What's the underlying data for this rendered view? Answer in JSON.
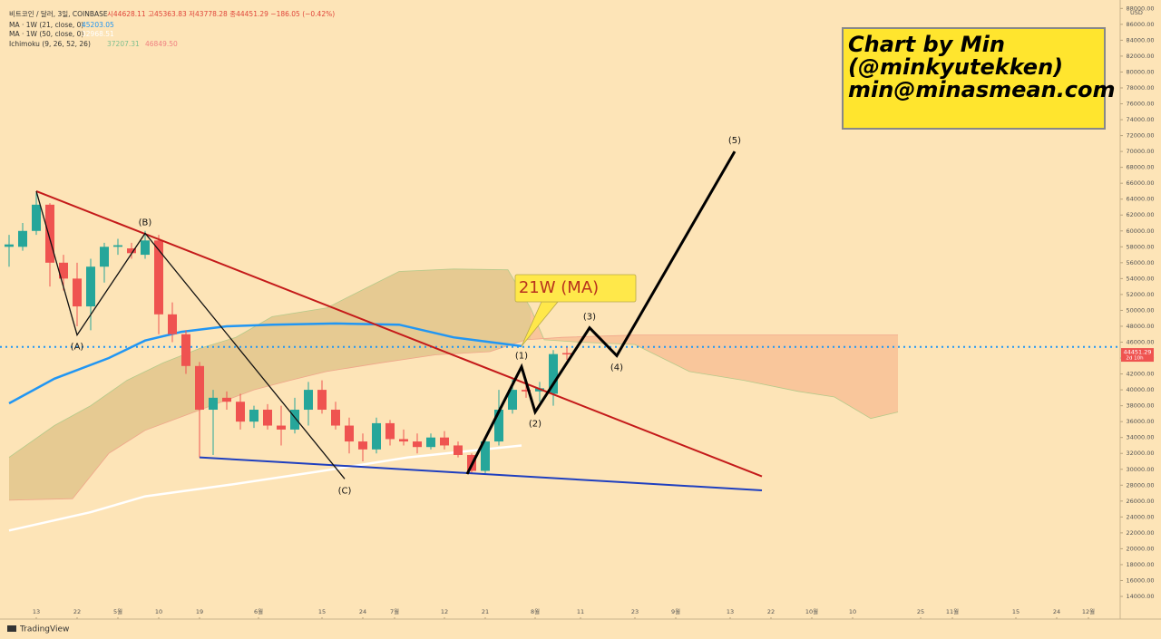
{
  "chart_data": {
    "type": "candlestick",
    "header": [
      "비트코인 / 달러, 3일, COINBASE",
      "시44628.11 고45363.83 저43778.28 종44451.29 −186.05 (−0.42%)"
    ],
    "indicators": [
      {
        "name": "MA · 1W (21, close, 0)",
        "value": "45203.05",
        "color": "#2196f3"
      },
      {
        "name": "MA · 1W (50, close, 0)",
        "value": "32968.51",
        "color": "#ffffff"
      },
      {
        "name": "Ichimoku (9, 26, 52, 26)",
        "value": "37207.31",
        "value2": "46849.50",
        "color": "#7fbf8f",
        "color2": "#f08080"
      }
    ],
    "author_note": [
      "Chart by Min",
      "(@minkyutekken)",
      "min@minasmean.com"
    ],
    "callout": "21W (MA)",
    "y_unit": "USD",
    "last_price_label": "44451.29",
    "countdown": "2d 10h",
    "brand": "TradingView",
    "up_color": "#26a69a",
    "down_color": "#ef5350",
    "candles": {
      "x": [
        97,
        100,
        103,
        106,
        109,
        112,
        115,
        118,
        121,
        124,
        127,
        130,
        133,
        136,
        139,
        142,
        145,
        148,
        151,
        154,
        157,
        160,
        163,
        166,
        169,
        172,
        175,
        178,
        181,
        184,
        187,
        190,
        193,
        196,
        199,
        202,
        205,
        208,
        211,
        214,
        217,
        220
      ],
      "open": [
        58000,
        58000,
        60000,
        63300,
        56000,
        54000,
        50500,
        55500,
        58000,
        57800,
        57000,
        58800,
        49500,
        47000,
        43000,
        37500,
        39000,
        38500,
        36000,
        37500,
        35500,
        35000,
        37500,
        40000,
        37500,
        35500,
        33500,
        32500,
        35800,
        33800,
        33500,
        32800,
        34000,
        33000,
        31800,
        29800,
        33500,
        37500,
        40000,
        39800,
        39500,
        44628.11
      ],
      "high": [
        59500,
        61000,
        64800,
        63500,
        57000,
        56000,
        56500,
        58500,
        59000,
        58500,
        60000,
        59500,
        51000,
        47500,
        43500,
        40000,
        39800,
        39500,
        38000,
        38200,
        38000,
        39000,
        41000,
        41200,
        38500,
        36500,
        34500,
        36500,
        36200,
        35000,
        34500,
        34500,
        34800,
        33500,
        32000,
        34000,
        40000,
        41500,
        41000,
        41000,
        45000,
        45363.83
      ],
      "low": [
        55500,
        57500,
        59500,
        53000,
        52500,
        48000,
        47500,
        53500,
        57000,
        56500,
        56500,
        47000,
        46000,
        42000,
        31500,
        31800,
        37500,
        35000,
        35200,
        35000,
        33000,
        34500,
        35500,
        37000,
        35000,
        32000,
        31000,
        32000,
        33000,
        33000,
        32000,
        32500,
        32500,
        31500,
        29500,
        29500,
        33000,
        37000,
        39000,
        38500,
        38000,
        43778.28
      ],
      "close": [
        58300,
        60000,
        63300,
        56000,
        54000,
        50500,
        55500,
        58000,
        58200,
        57200,
        58800,
        49500,
        47000,
        43000,
        37500,
        39000,
        38500,
        36000,
        37500,
        35500,
        35000,
        37500,
        40000,
        37500,
        35500,
        33500,
        32500,
        35800,
        33800,
        33500,
        32800,
        34000,
        33000,
        31800,
        29800,
        33500,
        37500,
        40000,
        39800,
        40200,
        44500,
        44451.29
      ]
    },
    "lines": [
      {
        "name": "MA 21",
        "color": "#2196f3",
        "width": 2.5,
        "x": [
          97,
          107,
          119,
          127,
          135,
          145,
          155,
          169,
          183,
          195,
          210
        ],
        "values": [
          38300,
          41400,
          44000,
          46200,
          47300,
          48000,
          48200,
          48350,
          48200,
          46600,
          45500
        ]
      },
      {
        "name": "MA 50",
        "color": "#ffffff",
        "width": 2.5,
        "x": [
          97,
          115,
          127,
          145,
          165,
          185,
          210
        ],
        "values": [
          22300,
          24600,
          26600,
          28000,
          29700,
          31500,
          33000
        ]
      },
      {
        "name": "Trend upper",
        "color": "#c41a1a",
        "width": 2,
        "x": [
          103,
          263
        ],
        "values": [
          65000,
          29100
        ]
      },
      {
        "name": "Trend lower",
        "color": "#1f3fbf",
        "width": 2,
        "x": [
          139,
          263
        ],
        "values": [
          31500,
          27350
        ]
      }
    ],
    "cloud": {
      "fill": "#e2c68c",
      "future_fill": "#f7b98f",
      "future_from": 212,
      "span_a": {
        "x": [
          97,
          107,
          115,
          123,
          131,
          139,
          147,
          155,
          167,
          175,
          183,
          195,
          207,
          212,
          215,
          223,
          235,
          247,
          259,
          271,
          279,
          287,
          293
        ],
        "values": [
          31500,
          35500,
          38000,
          41200,
          43400,
          45200,
          46600,
          49200,
          50300,
          52600,
          54900,
          55200,
          55100,
          50300,
          46300,
          46000,
          45700,
          42300,
          41200,
          39800,
          39100,
          36400,
          37200
        ]
      },
      "span_b": {
        "x": [
          97,
          111,
          119,
          127,
          135,
          143,
          151,
          159,
          167,
          179,
          191,
          203,
          211,
          219,
          235,
          255,
          293
        ],
        "values": [
          26100,
          26300,
          32000,
          34900,
          36600,
          38300,
          40000,
          41200,
          42300,
          43400,
          44400,
          44800,
          46300,
          46600,
          46900,
          46900,
          46900
        ]
      }
    },
    "hline": {
      "value": 45400,
      "color": "#2196f3"
    },
    "waves": [
      {
        "color": "#111111",
        "width": 1.3,
        "x": [
          103,
          112,
          127,
          171
        ],
        "values": [
          65000,
          46900,
          59700,
          28800
        ],
        "labels": [
          null,
          "(A)",
          "(B)",
          "(C)"
        ]
      },
      {
        "color": "#000000",
        "width": 3,
        "x": [
          198,
          210,
          213,
          225,
          231,
          257
        ],
        "values": [
          29400,
          42900,
          37200,
          47800,
          44300,
          70000
        ],
        "labels": [
          null,
          "(1)",
          "(2)",
          "(3)",
          "(4)",
          "(5)"
        ]
      }
    ],
    "callout_point": {
      "x": 210,
      "value": 45500
    },
    "xlim": [
      95,
      342
    ],
    "xticks": [
      {
        "value": 103,
        "label": "13"
      },
      {
        "value": 112,
        "label": "22"
      },
      {
        "value": 121,
        "label": "5월"
      },
      {
        "value": 130,
        "label": "10"
      },
      {
        "value": 139,
        "label": "19"
      },
      {
        "value": 152,
        "label": "6월"
      },
      {
        "value": 166,
        "label": "15"
      },
      {
        "value": 175,
        "label": "24"
      },
      {
        "value": 182,
        "label": "7월"
      },
      {
        "value": 193,
        "label": "12"
      },
      {
        "value": 202,
        "label": "21"
      },
      {
        "value": 213,
        "label": "8월"
      },
      {
        "value": 223,
        "label": "11"
      },
      {
        "value": 235,
        "label": "23"
      },
      {
        "value": 244,
        "label": "9월"
      },
      {
        "value": 256,
        "label": "13"
      },
      {
        "value": 265,
        "label": "22"
      },
      {
        "value": 274,
        "label": "10월"
      },
      {
        "value": 283,
        "label": "10"
      },
      {
        "value": 298,
        "label": "25"
      },
      {
        "value": 305,
        "label": "11월"
      },
      {
        "value": 319,
        "label": "15"
      },
      {
        "value": 328,
        "label": "24"
      },
      {
        "value": 335,
        "label": "12월"
      }
    ],
    "ylim": [
      11150,
      88150
    ],
    "yticks": [
      {
        "value": 14000,
        "label": "14000.00"
      },
      {
        "value": 16000,
        "label": "16000.00"
      },
      {
        "value": 18000,
        "label": "18000.00"
      },
      {
        "value": 20000,
        "label": "20000.00"
      },
      {
        "value": 22000,
        "label": "22000.00"
      },
      {
        "value": 24000,
        "label": "24000.00"
      },
      {
        "value": 26000,
        "label": "26000.00"
      },
      {
        "value": 28000,
        "label": "28000.00"
      },
      {
        "value": 30000,
        "label": "30000.00"
      },
      {
        "value": 32000,
        "label": "32000.00"
      },
      {
        "value": 34000,
        "label": "34000.00"
      },
      {
        "value": 36000,
        "label": "36000.00"
      },
      {
        "value": 38000,
        "label": "38000.00"
      },
      {
        "value": 40000,
        "label": "40000.00"
      },
      {
        "value": 42000,
        "label": "42000.00"
      },
      {
        "value": 44000,
        "label": "44000.00"
      },
      {
        "value": 46000,
        "label": "46000.00"
      },
      {
        "value": 48000,
        "label": "48000.00"
      },
      {
        "value": 50000,
        "label": "50000.00"
      },
      {
        "value": 52000,
        "label": "52000.00"
      },
      {
        "value": 54000,
        "label": "54000.00"
      },
      {
        "value": 56000,
        "label": "56000.00"
      },
      {
        "value": 58000,
        "label": "58000.00"
      },
      {
        "value": 60000,
        "label": "60000.00"
      },
      {
        "value": 62000,
        "label": "62000.00"
      },
      {
        "value": 64000,
        "label": "64000.00"
      },
      {
        "value": 66000,
        "label": "66000.00"
      },
      {
        "value": 68000,
        "label": "68000.00"
      },
      {
        "value": 70000,
        "label": "70000.00"
      },
      {
        "value": 72000,
        "label": "72000.00"
      },
      {
        "value": 74000,
        "label": "74000.00"
      },
      {
        "value": 76000,
        "label": "76000.00"
      },
      {
        "value": 78000,
        "label": "78000.00"
      },
      {
        "value": 80000,
        "label": "80000.00"
      },
      {
        "value": 82000,
        "label": "82000.00"
      },
      {
        "value": 84000,
        "label": "84000.00"
      },
      {
        "value": 86000,
        "label": "86000.00"
      },
      {
        "value": 88000,
        "label": "88000.00"
      }
    ]
  }
}
